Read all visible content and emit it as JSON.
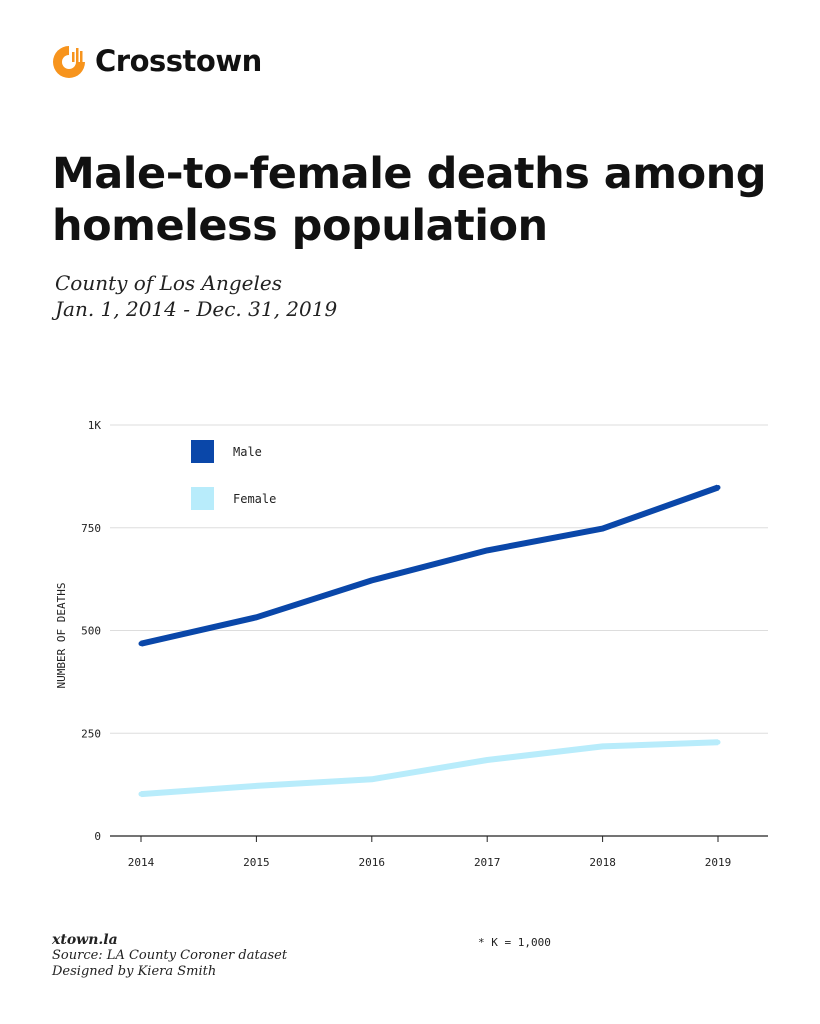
{
  "brand": {
    "name": "Crosstown",
    "accent": "#f7941d"
  },
  "title": "Male-to-female deaths among homeless population",
  "subtitle": {
    "line1": "County of Los Angeles",
    "line2": "Jan. 1, 2014 - Dec. 31, 2019"
  },
  "footer": {
    "site": "xtown.la",
    "source": "Source: LA County Coroner dataset",
    "credit": "Designed by Kiera Smith",
    "footnote": "* K = 1,000"
  },
  "chart_data": {
    "type": "line",
    "x": [
      2014,
      2015,
      2016,
      2017,
      2018,
      2019
    ],
    "xticks": [
      "2014",
      "2015",
      "2016",
      "2017",
      "2018",
      "2019"
    ],
    "yticks": [
      {
        "value": 0,
        "label": "0"
      },
      {
        "value": 250,
        "label": "250"
      },
      {
        "value": 500,
        "label": "500"
      },
      {
        "value": 750,
        "label": "750"
      },
      {
        "value": 1000,
        "label": "1K"
      }
    ],
    "ylim": [
      0,
      1000
    ],
    "ylabel": "NUMBER OF DEATHS",
    "xlabel": "",
    "grid": true,
    "legend_position": "top-left",
    "series": [
      {
        "name": "Male",
        "color": "#0a47a9",
        "values": [
          468,
          532,
          622,
          695,
          748,
          848
        ]
      },
      {
        "name": "Female",
        "color": "#b8ecfb",
        "values": [
          102,
          122,
          138,
          185,
          218,
          228
        ]
      }
    ]
  }
}
